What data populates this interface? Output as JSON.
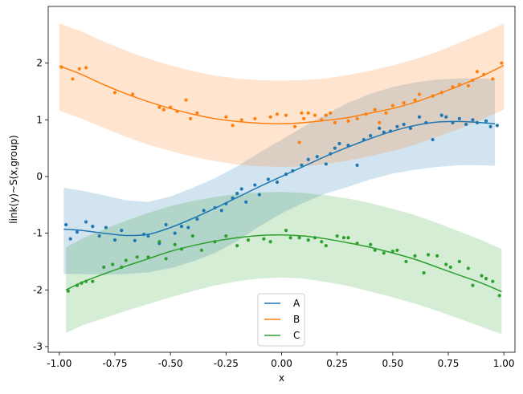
{
  "chart_data": {
    "type": "line",
    "xlabel": "x",
    "ylabel": "link(y)~S(x,group)",
    "xlim": [
      -1.05,
      1.05
    ],
    "ylim": [
      -3.1,
      3.0
    ],
    "xticks": [
      "-1.00",
      "-0.75",
      "-0.50",
      "-0.25",
      "0.00",
      "0.25",
      "0.50",
      "0.75",
      "1.00"
    ],
    "xtick_values": [
      -1.0,
      -0.75,
      -0.5,
      -0.25,
      0.0,
      0.25,
      0.5,
      0.75,
      1.0
    ],
    "yticks": [
      "-3",
      "-2",
      "-1",
      "0",
      "1",
      "2"
    ],
    "ytick_values": [
      -3,
      -2,
      -1,
      0,
      1,
      2
    ],
    "legend_position": "bottom-center",
    "grid": false,
    "series": [
      {
        "name": "A",
        "color": "#1f77b4",
        "x": [
          -0.98,
          -0.9,
          -0.8,
          -0.7,
          -0.6,
          -0.5,
          -0.4,
          -0.3,
          -0.2,
          -0.1,
          0.0,
          0.1,
          0.2,
          0.3,
          0.4,
          0.5,
          0.6,
          0.7,
          0.8,
          0.9,
          0.96
        ],
        "y": [
          -0.93,
          -0.95,
          -1.0,
          -1.04,
          -1.02,
          -0.9,
          -0.74,
          -0.56,
          -0.37,
          -0.18,
          0.0,
          0.18,
          0.36,
          0.52,
          0.67,
          0.8,
          0.9,
          0.96,
          0.97,
          0.95,
          0.93
        ],
        "band_upper": [
          -0.2,
          -0.25,
          -0.33,
          -0.42,
          -0.45,
          -0.35,
          -0.2,
          -0.03,
          0.18,
          0.42,
          0.65,
          0.88,
          1.1,
          1.3,
          1.46,
          1.58,
          1.66,
          1.71,
          1.73,
          1.73,
          1.72
        ],
        "band_lower": [
          -1.72,
          -1.72,
          -1.73,
          -1.72,
          -1.69,
          -1.62,
          -1.5,
          -1.35,
          -1.14,
          -0.88,
          -0.65,
          -0.46,
          -0.3,
          -0.18,
          -0.05,
          0.05,
          0.12,
          0.17,
          0.2,
          0.2,
          0.19
        ],
        "points_x": [
          -0.97,
          -0.95,
          -0.92,
          -0.88,
          -0.85,
          -0.82,
          -0.79,
          -0.75,
          -0.72,
          -0.66,
          -0.62,
          -0.6,
          -0.55,
          -0.52,
          -0.48,
          -0.45,
          -0.42,
          -0.38,
          -0.35,
          -0.3,
          -0.27,
          -0.25,
          -0.22,
          -0.2,
          -0.18,
          -0.16,
          -0.12,
          -0.1,
          -0.06,
          -0.02,
          0.02,
          0.05,
          0.09,
          0.12,
          0.16,
          0.2,
          0.22,
          0.24,
          0.26,
          0.3,
          0.34,
          0.37,
          0.4,
          0.44,
          0.46,
          0.49,
          0.52,
          0.55,
          0.58,
          0.62,
          0.65,
          0.68,
          0.72,
          0.74,
          0.77,
          0.8,
          0.83,
          0.86,
          0.88,
          0.92,
          0.94,
          0.97
        ],
        "points_y": [
          -0.85,
          -1.1,
          -0.98,
          -0.8,
          -0.88,
          -1.05,
          -0.9,
          -1.12,
          -0.95,
          -1.13,
          -1.02,
          -1.05,
          -1.18,
          -0.85,
          -1.0,
          -0.88,
          -0.9,
          -0.75,
          -0.6,
          -0.55,
          -0.6,
          -0.48,
          -0.38,
          -0.3,
          -0.22,
          -0.45,
          -0.15,
          -0.32,
          -0.05,
          -0.1,
          0.04,
          0.1,
          0.2,
          0.3,
          0.35,
          0.22,
          0.4,
          0.5,
          0.58,
          0.55,
          0.2,
          0.65,
          0.72,
          0.85,
          0.78,
          0.8,
          0.88,
          0.92,
          0.85,
          1.05,
          0.95,
          0.65,
          1.08,
          1.05,
          0.95,
          1.02,
          0.92,
          1.0,
          0.95,
          0.98,
          0.88,
          0.9
        ]
      },
      {
        "name": "B",
        "color": "#ff7f0e",
        "x": [
          -1.0,
          -0.9,
          -0.8,
          -0.7,
          -0.6,
          -0.5,
          -0.4,
          -0.3,
          -0.2,
          -0.1,
          0.0,
          0.1,
          0.2,
          0.3,
          0.4,
          0.5,
          0.6,
          0.7,
          0.8,
          0.9,
          1.0
        ],
        "y": [
          1.95,
          1.8,
          1.62,
          1.46,
          1.32,
          1.2,
          1.1,
          1.02,
          0.97,
          0.94,
          0.93,
          0.95,
          0.99,
          1.04,
          1.12,
          1.2,
          1.31,
          1.45,
          1.6,
          1.77,
          1.96
        ],
        "band_upper": [
          2.7,
          2.56,
          2.38,
          2.22,
          2.08,
          1.96,
          1.86,
          1.78,
          1.73,
          1.7,
          1.69,
          1.7,
          1.73,
          1.79,
          1.87,
          1.96,
          2.07,
          2.2,
          2.36,
          2.52,
          2.7
        ],
        "band_lower": [
          1.16,
          1.02,
          0.86,
          0.7,
          0.56,
          0.45,
          0.35,
          0.27,
          0.21,
          0.18,
          0.17,
          0.18,
          0.22,
          0.28,
          0.36,
          0.45,
          0.56,
          0.7,
          0.84,
          1.0,
          1.18
        ],
        "points_x": [
          -0.99,
          -0.94,
          -0.91,
          -0.88,
          -0.75,
          -0.67,
          -0.55,
          -0.53,
          -0.5,
          -0.47,
          -0.43,
          -0.41,
          -0.38,
          -0.25,
          -0.22,
          -0.18,
          -0.12,
          -0.05,
          -0.02,
          0.02,
          0.06,
          0.08,
          0.09,
          0.1,
          0.12,
          0.15,
          0.18,
          0.2,
          0.22,
          0.24,
          0.3,
          0.34,
          0.38,
          0.42,
          0.44,
          0.47,
          0.5,
          0.55,
          0.6,
          0.62,
          0.68,
          0.72,
          0.77,
          0.8,
          0.84,
          0.86,
          0.88,
          0.91,
          0.95,
          0.99
        ],
        "points_y": [
          1.93,
          1.72,
          1.9,
          1.92,
          1.48,
          1.45,
          1.22,
          1.18,
          1.22,
          1.15,
          1.35,
          1.02,
          1.12,
          1.05,
          0.9,
          1.0,
          1.02,
          1.05,
          1.1,
          1.08,
          0.88,
          0.6,
          1.12,
          1.02,
          1.12,
          1.08,
          1.0,
          1.08,
          1.12,
          0.95,
          0.98,
          1.02,
          1.1,
          1.18,
          0.95,
          1.12,
          1.25,
          1.3,
          1.35,
          1.45,
          1.42,
          1.48,
          1.58,
          1.62,
          1.6,
          1.7,
          1.85,
          1.8,
          1.72,
          2.0
        ]
      },
      {
        "name": "C",
        "color": "#2ca02c",
        "x": [
          -0.97,
          -0.9,
          -0.8,
          -0.7,
          -0.6,
          -0.5,
          -0.4,
          -0.3,
          -0.2,
          -0.1,
          0.0,
          0.1,
          0.2,
          0.3,
          0.4,
          0.5,
          0.6,
          0.7,
          0.8,
          0.9,
          0.99
        ],
        "y": [
          -2.0,
          -1.87,
          -1.72,
          -1.58,
          -1.45,
          -1.32,
          -1.22,
          -1.14,
          -1.08,
          -1.04,
          -1.03,
          -1.05,
          -1.1,
          -1.17,
          -1.25,
          -1.35,
          -1.46,
          -1.6,
          -1.74,
          -1.88,
          -2.03
        ],
        "band_upper": [
          -1.25,
          -1.1,
          -0.93,
          -0.78,
          -0.64,
          -0.52,
          -0.43,
          -0.36,
          -0.31,
          -0.28,
          -0.27,
          -0.29,
          -0.33,
          -0.39,
          -0.47,
          -0.57,
          -0.68,
          -0.82,
          -0.97,
          -1.12,
          -1.28
        ],
        "band_lower": [
          -2.76,
          -2.63,
          -2.5,
          -2.37,
          -2.25,
          -2.13,
          -2.02,
          -1.92,
          -1.85,
          -1.8,
          -1.78,
          -1.8,
          -1.86,
          -1.93,
          -2.03,
          -2.13,
          -2.24,
          -2.37,
          -2.51,
          -2.65,
          -2.78
        ],
        "points_x": [
          -0.96,
          -0.92,
          -0.9,
          -0.88,
          -0.85,
          -0.8,
          -0.76,
          -0.72,
          -0.7,
          -0.65,
          -0.6,
          -0.55,
          -0.52,
          -0.48,
          -0.45,
          -0.4,
          -0.36,
          -0.3,
          -0.25,
          -0.2,
          -0.15,
          -0.08,
          -0.05,
          0.02,
          0.04,
          0.08,
          0.12,
          0.15,
          0.18,
          0.2,
          0.25,
          0.28,
          0.3,
          0.34,
          0.4,
          0.42,
          0.46,
          0.5,
          0.52,
          0.56,
          0.6,
          0.64,
          0.66,
          0.7,
          0.74,
          0.76,
          0.8,
          0.84,
          0.86,
          0.9,
          0.92,
          0.95,
          0.98
        ],
        "points_y": [
          -2.02,
          -1.92,
          -1.88,
          -1.85,
          -1.85,
          -1.6,
          -1.55,
          -1.6,
          -1.48,
          -1.42,
          -1.42,
          -1.15,
          -1.45,
          -1.2,
          -1.28,
          -1.05,
          -1.3,
          -1.15,
          -1.05,
          -1.22,
          -1.12,
          -1.1,
          -1.15,
          -0.95,
          -1.08,
          -1.08,
          -1.12,
          -1.08,
          -1.15,
          -1.22,
          -1.05,
          -1.08,
          -1.08,
          -1.18,
          -1.2,
          -1.3,
          -1.35,
          -1.32,
          -1.3,
          -1.5,
          -1.4,
          -1.7,
          -1.38,
          -1.4,
          -1.55,
          -1.6,
          -1.5,
          -1.62,
          -1.92,
          -1.75,
          -1.8,
          -1.85,
          -2.1
        ]
      }
    ]
  }
}
